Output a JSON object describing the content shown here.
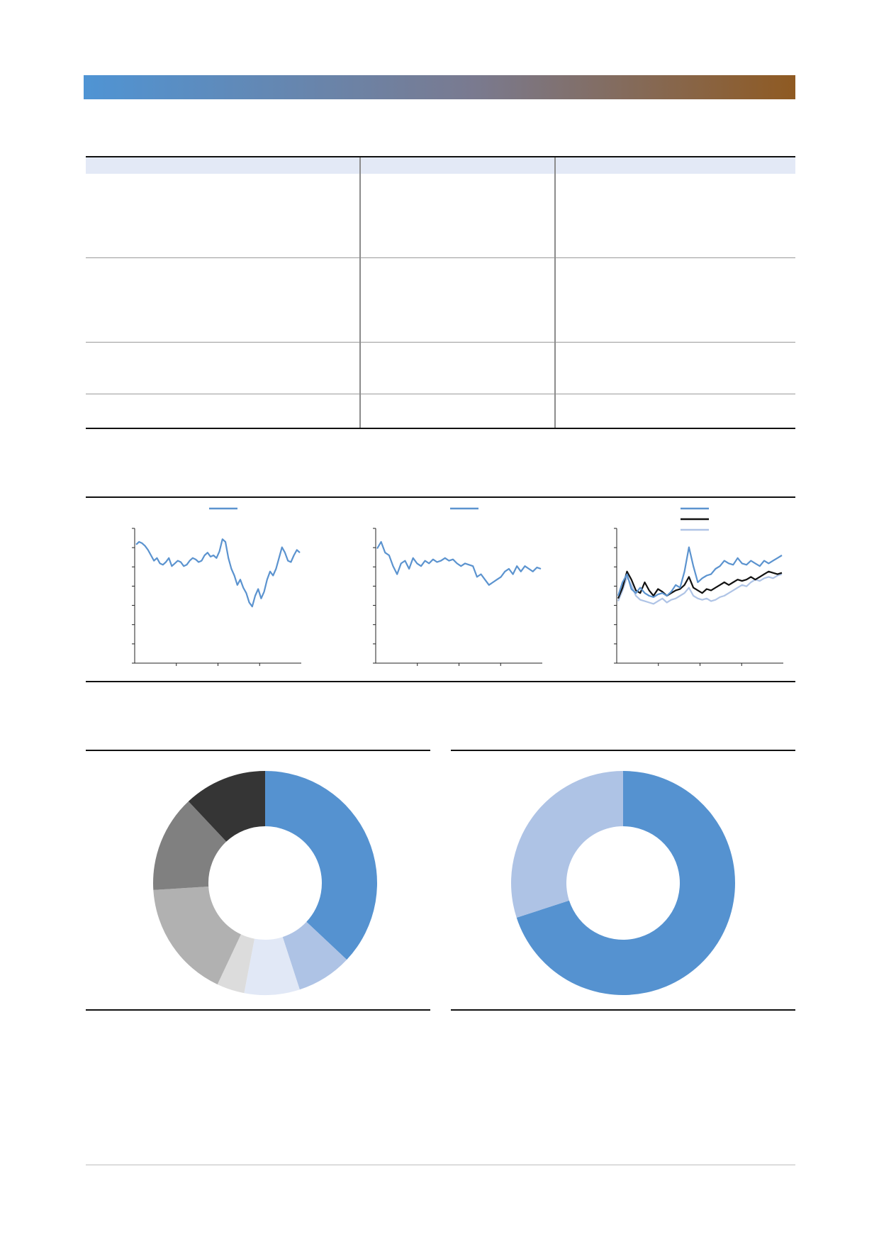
{
  "colors": {
    "band_start": "#4f94d4",
    "band_end": "#8f5a22",
    "header_fill": "#e3e9f6",
    "series_blue": "#5b93cf",
    "series_black": "#111111",
    "series_light_blue": "#afc4e6",
    "pie_dark_blue": "#5592d0",
    "pie_mid_blue": "#aec3e5",
    "pie_light_blue": "#e1e8f6",
    "pie_light_grey": "#dcdcdc",
    "pie_mid_grey": "#b1b1b1",
    "pie_grey": "#808080",
    "pie_dark_grey": "#353535"
  },
  "table": {
    "header": [
      "",
      "",
      ""
    ],
    "rows": [
      [
        "",
        "",
        ""
      ],
      [
        "",
        "",
        ""
      ],
      [
        "",
        "",
        ""
      ],
      [
        "",
        "",
        ""
      ]
    ]
  },
  "chart_data": [
    {
      "type": "line",
      "title": "",
      "legend": [
        ""
      ],
      "series": [
        {
          "values": [
            0.88,
            0.9,
            0.89,
            0.87,
            0.84,
            0.8,
            0.76,
            0.78,
            0.74,
            0.73,
            0.75,
            0.78,
            0.72,
            0.74,
            0.76,
            0.75,
            0.72,
            0.73,
            0.76,
            0.78,
            0.77,
            0.75,
            0.76,
            0.8,
            0.82,
            0.79,
            0.8,
            0.78,
            0.83,
            0.92,
            0.9,
            0.78,
            0.7,
            0.65,
            0.58,
            0.62,
            0.56,
            0.52,
            0.45,
            0.42,
            0.5,
            0.55,
            0.48,
            0.53,
            0.62,
            0.68,
            0.65,
            0.7,
            0.78,
            0.86,
            0.82,
            0.76,
            0.75,
            0.8,
            0.84,
            0.82
          ]
        }
      ],
      "ylim": [
        0,
        1
      ]
    },
    {
      "type": "line",
      "title": "",
      "legend": [
        ""
      ],
      "series": [
        {
          "values": [
            0.85,
            0.9,
            0.82,
            0.8,
            0.72,
            0.66,
            0.74,
            0.76,
            0.7,
            0.78,
            0.74,
            0.72,
            0.76,
            0.74,
            0.77,
            0.75,
            0.76,
            0.78,
            0.76,
            0.77,
            0.74,
            0.72,
            0.74,
            0.73,
            0.72,
            0.64,
            0.66,
            0.62,
            0.58,
            0.6,
            0.62,
            0.64,
            0.68,
            0.7,
            0.66,
            0.72,
            0.68,
            0.72,
            0.7,
            0.68,
            0.71,
            0.7
          ]
        }
      ],
      "ylim": [
        0,
        1
      ]
    },
    {
      "type": "line",
      "title": "",
      "legend": [
        "",
        "",
        ""
      ],
      "series": [
        {
          "values": [
            0.5,
            0.6,
            0.66,
            0.55,
            0.52,
            0.56,
            0.52,
            0.5,
            0.49,
            0.51,
            0.52,
            0.5,
            0.53,
            0.58,
            0.56,
            0.68,
            0.86,
            0.72,
            0.6,
            0.63,
            0.65,
            0.66,
            0.7,
            0.72,
            0.76,
            0.74,
            0.73,
            0.78,
            0.74,
            0.73,
            0.76,
            0.74,
            0.72,
            0.76,
            0.74,
            0.76,
            0.78,
            0.8
          ]
        },
        {
          "values": [
            0.48,
            0.56,
            0.68,
            0.62,
            0.54,
            0.52,
            0.6,
            0.54,
            0.5,
            0.55,
            0.53,
            0.5,
            0.52,
            0.54,
            0.55,
            0.58,
            0.64,
            0.56,
            0.54,
            0.52,
            0.55,
            0.54,
            0.56,
            0.58,
            0.6,
            0.58,
            0.6,
            0.62,
            0.61,
            0.62,
            0.64,
            0.62,
            0.64,
            0.66,
            0.68,
            0.67,
            0.66,
            0.67
          ]
        },
        {
          "values": [
            0.46,
            0.54,
            0.64,
            0.58,
            0.5,
            0.47,
            0.46,
            0.45,
            0.44,
            0.46,
            0.48,
            0.45,
            0.47,
            0.48,
            0.5,
            0.52,
            0.56,
            0.5,
            0.48,
            0.47,
            0.48,
            0.46,
            0.47,
            0.49,
            0.5,
            0.52,
            0.54,
            0.56,
            0.58,
            0.57,
            0.6,
            0.62,
            0.61,
            0.63,
            0.64,
            0.63,
            0.65,
            0.66
          ]
        }
      ],
      "ylim": [
        0,
        1
      ]
    },
    {
      "type": "pie",
      "title": "",
      "slices": [
        {
          "value": 37,
          "color": "#5592d0"
        },
        {
          "value": 8,
          "color": "#aec3e5"
        },
        {
          "value": 8,
          "color": "#e1e8f6"
        },
        {
          "value": 4,
          "color": "#dcdcdc"
        },
        {
          "value": 17,
          "color": "#b1b1b1"
        },
        {
          "value": 14,
          "color": "#808080"
        },
        {
          "value": 12,
          "color": "#353535"
        }
      ]
    },
    {
      "type": "pie",
      "title": "",
      "slices": [
        {
          "value": 70,
          "color": "#5592d0"
        },
        {
          "value": 30,
          "color": "#aec3e5"
        }
      ]
    }
  ]
}
